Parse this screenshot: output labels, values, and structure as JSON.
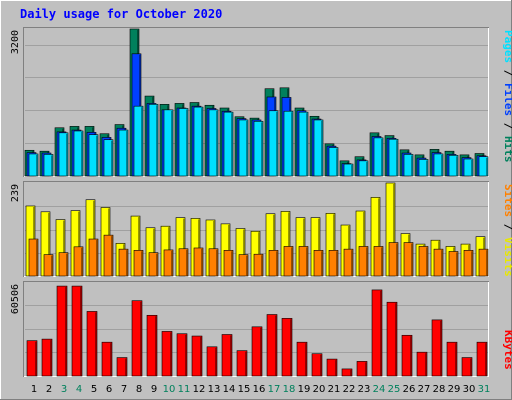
{
  "title": "Daily usage for October 2020",
  "panels": {
    "top": {
      "max_label": "3200",
      "ylim": [
        0,
        3200
      ],
      "legend": {
        "part1": "Pages",
        "sep1": " / ",
        "part2": "Files",
        "sep2": " / ",
        "part3": "Hits"
      }
    },
    "middle": {
      "max_label": "239",
      "ylim": [
        0,
        239
      ],
      "legend": {
        "part1": "Sites",
        "sep1": " / ",
        "part2": "Visits"
      }
    },
    "bottom": {
      "max_label": "60506",
      "ylim": [
        0,
        60506
      ],
      "legend": {
        "part1": "KBytes"
      }
    }
  },
  "colors": {
    "background": "#c0c0c0",
    "panel": "#c0c0c0",
    "title": "#0000ff",
    "hits": "#00805c",
    "files": "#0040ff",
    "pages": "#00e0ff",
    "visits": "#ffff00",
    "sites": "#ff8000",
    "kbytes": "#ff0000",
    "weekend_label": "#00805c",
    "weekday_label": "#000000"
  },
  "chart_data": [
    {
      "type": "bar",
      "categories": [
        "1",
        "2",
        "3",
        "4",
        "5",
        "6",
        "7",
        "8",
        "9",
        "10",
        "11",
        "12",
        "13",
        "14",
        "15",
        "16",
        "17",
        "18",
        "19",
        "20",
        "21",
        "22",
        "23",
        "24",
        "25",
        "26",
        "27",
        "28",
        "29",
        "30",
        "31"
      ],
      "weekend_days": [
        "3",
        "4",
        "10",
        "11",
        "17",
        "18",
        "24",
        "25",
        "31"
      ],
      "ylim": [
        0,
        3200
      ],
      "series": [
        {
          "name": "Hits",
          "values": [
            560,
            540,
            1050,
            1080,
            1080,
            920,
            1120,
            3200,
            1740,
            1560,
            1580,
            1600,
            1540,
            1480,
            1290,
            1260,
            1900,
            1920,
            1480,
            1300,
            700,
            330,
            420,
            940,
            880,
            570,
            460,
            580,
            540,
            460,
            490
          ]
        },
        {
          "name": "Files",
          "values": [
            510,
            500,
            960,
            1000,
            950,
            840,
            1040,
            2660,
            1580,
            1440,
            1480,
            1520,
            1470,
            1410,
            1250,
            1220,
            1720,
            1710,
            1420,
            1240,
            650,
            270,
            350,
            860,
            820,
            500,
            390,
            510,
            470,
            400,
            440
          ]
        },
        {
          "name": "Pages",
          "values": [
            480,
            470,
            940,
            980,
            900,
            790,
            1000,
            1520,
            1560,
            1440,
            1470,
            1500,
            1440,
            1390,
            1220,
            1190,
            1420,
            1410,
            1390,
            1220,
            620,
            260,
            330,
            830,
            800,
            470,
            360,
            480,
            450,
            370,
            420
          ]
        }
      ]
    },
    {
      "type": "bar",
      "categories": [
        "1",
        "2",
        "3",
        "4",
        "5",
        "6",
        "7",
        "8",
        "9",
        "10",
        "11",
        "12",
        "13",
        "14",
        "15",
        "16",
        "17",
        "18",
        "19",
        "20",
        "21",
        "22",
        "23",
        "24",
        "25",
        "26",
        "27",
        "28",
        "29",
        "30",
        "31"
      ],
      "ylim": [
        0,
        239
      ],
      "series": [
        {
          "name": "Visits",
          "values": [
            180,
            165,
            145,
            168,
            196,
            176,
            84,
            154,
            124,
            128,
            150,
            148,
            144,
            134,
            122,
            115,
            160,
            166,
            150,
            150,
            161,
            131,
            167,
            202,
            239,
            109,
            82,
            92,
            76,
            82,
            101
          ]
        },
        {
          "name": "Sites",
          "values": [
            95,
            55,
            60,
            75,
            95,
            105,
            69,
            66,
            60,
            67,
            70,
            72,
            70,
            66,
            55,
            56,
            66,
            76,
            76,
            66,
            66,
            69,
            76,
            76,
            86,
            86,
            76,
            69,
            63,
            66,
            69
          ]
        }
      ]
    },
    {
      "type": "bar",
      "categories": [
        "1",
        "2",
        "3",
        "4",
        "5",
        "6",
        "7",
        "8",
        "9",
        "10",
        "11",
        "12",
        "13",
        "14",
        "15",
        "16",
        "17",
        "18",
        "19",
        "20",
        "21",
        "22",
        "23",
        "24",
        "25",
        "26",
        "27",
        "28",
        "29",
        "30",
        "31"
      ],
      "ylim": [
        0,
        60506
      ],
      "series": [
        {
          "name": "KBytes",
          "values": [
            23000,
            24000,
            58500,
            58500,
            42000,
            22000,
            12000,
            49000,
            39500,
            29000,
            27500,
            26000,
            19000,
            27000,
            16500,
            32000,
            40000,
            37500,
            22000,
            14500,
            11000,
            4600,
            9500,
            56000,
            48000,
            26500,
            15500,
            36500,
            22000,
            12000,
            22000
          ]
        }
      ]
    }
  ]
}
